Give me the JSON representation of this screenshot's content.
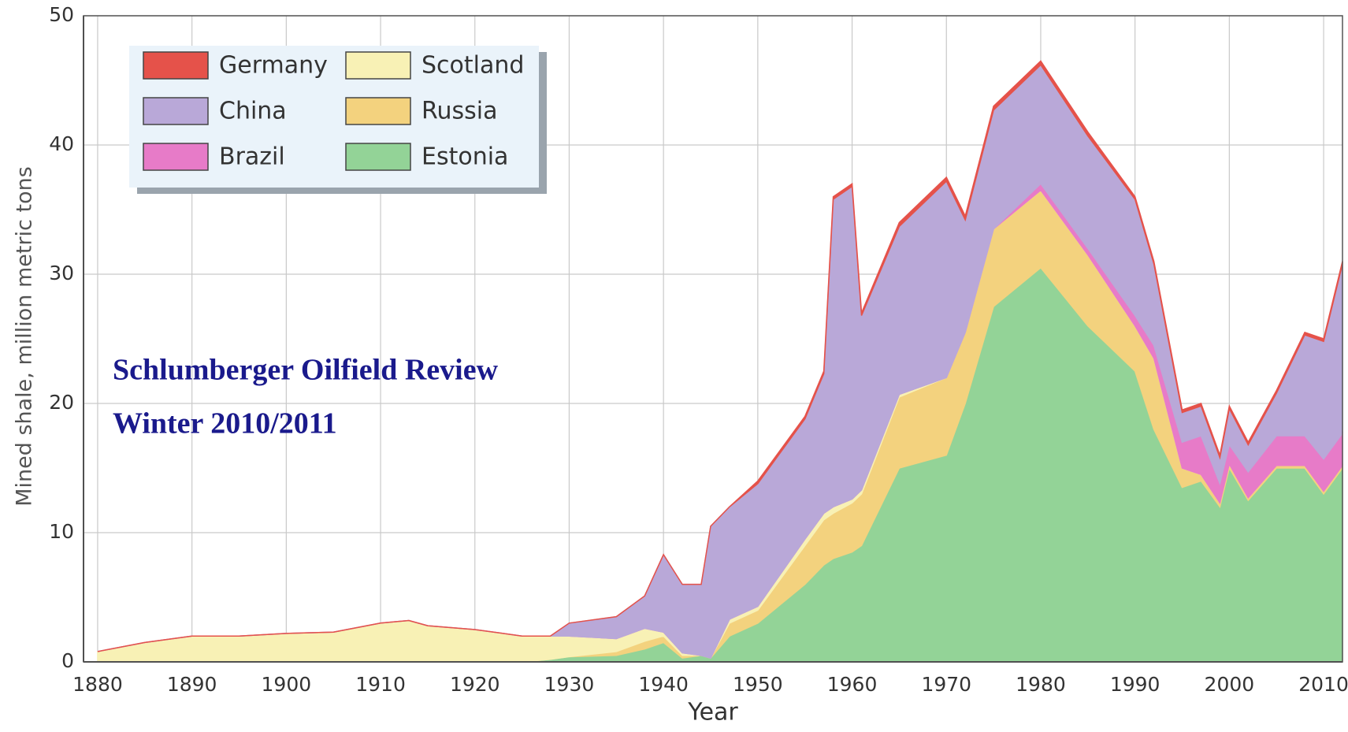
{
  "chart_data": {
    "type": "stacked_area",
    "xlabel": "Year",
    "ylabel": "Mined shale, million metric tons",
    "annotations": [
      "Schlumberger Oilfield Review",
      "Winter 2010/2011"
    ],
    "x": [
      1880,
      1885,
      1890,
      1895,
      1900,
      1905,
      1910,
      1913,
      1915,
      1920,
      1925,
      1928,
      1930,
      1935,
      1938,
      1940,
      1942,
      1944,
      1945,
      1947,
      1950,
      1955,
      1957,
      1958,
      1960,
      1961,
      1965,
      1970,
      1972,
      1975,
      1980,
      1985,
      1990,
      1992,
      1995,
      1997,
      1999,
      2000,
      2002,
      2005,
      2008,
      2010,
      2012
    ],
    "series": [
      {
        "name": "Estonia",
        "color": "#93d397",
        "values": [
          0,
          0,
          0,
          0,
          0,
          0,
          0,
          0,
          0,
          0,
          0,
          0.2,
          0.4,
          0.5,
          1.0,
          1.5,
          0.3,
          0.5,
          0.3,
          2,
          3,
          6,
          7.5,
          8,
          8.5,
          9,
          15,
          16,
          20,
          27.5,
          30.5,
          26,
          22.5,
          18,
          13.5,
          14,
          12,
          15,
          12.5,
          15,
          15,
          13,
          15
        ]
      },
      {
        "name": "Russia",
        "color": "#f3d27e",
        "values": [
          0,
          0,
          0,
          0,
          0,
          0,
          0,
          0,
          0,
          0,
          0,
          0,
          0,
          0.3,
          0.6,
          0.5,
          0.2,
          0,
          0,
          1,
          1,
          3,
          3.5,
          3.5,
          3.8,
          4,
          5.5,
          6,
          5.5,
          6,
          6,
          5.5,
          3.5,
          5.5,
          1.5,
          0.5,
          0.3,
          0.3,
          0.2,
          0.2,
          0.2,
          0.2,
          0.2
        ]
      },
      {
        "name": "Scotland",
        "color": "#f8f1b5",
        "values": [
          0.8,
          1.5,
          2.0,
          2.0,
          2.2,
          2.3,
          3.0,
          3.2,
          2.8,
          2.5,
          2.0,
          1.8,
          1.6,
          1.0,
          1.0,
          0.3,
          0.2,
          0,
          0,
          0.3,
          0.3,
          0.5,
          0.5,
          0.5,
          0.3,
          0.3,
          0.2,
          0,
          0,
          0,
          0,
          0,
          0,
          0,
          0,
          0,
          0,
          0,
          0,
          0,
          0,
          0,
          0
        ]
      },
      {
        "name": "Brazil",
        "color": "#e77bc8",
        "values": [
          0,
          0,
          0,
          0,
          0,
          0,
          0,
          0,
          0,
          0,
          0,
          0,
          0,
          0,
          0,
          0,
          0,
          0,
          0,
          0,
          0,
          0,
          0,
          0,
          0,
          0,
          0,
          0,
          0,
          0,
          0.5,
          0.5,
          0.8,
          1,
          2,
          3,
          1.5,
          1.5,
          2,
          2.3,
          2.3,
          2.5,
          2.5
        ]
      },
      {
        "name": "China",
        "color": "#b9a8d8",
        "values": [
          0,
          0,
          0,
          0,
          0,
          0,
          0,
          0,
          0,
          0,
          0,
          0,
          1.0,
          1.7,
          2.5,
          6,
          5.3,
          5.5,
          10.2,
          8.7,
          9.5,
          9.3,
          10.8,
          23.8,
          24.2,
          13.5,
          13,
          15.2,
          8.7,
          9.2,
          9.2,
          8.7,
          9,
          6.3,
          2.3,
          2.3,
          2,
          2.8,
          2.1,
          3.3,
          7.8,
          9.1,
          13.1
        ]
      },
      {
        "name": "Germany",
        "color": "#e5524a",
        "values": [
          0,
          0,
          0,
          0,
          0,
          0,
          0,
          0,
          0,
          0,
          0,
          0,
          0,
          0,
          0,
          0,
          0,
          0,
          0,
          0,
          0.2,
          0.2,
          0.2,
          0.2,
          0.2,
          0.2,
          0.3,
          0.3,
          0.3,
          0.3,
          0.3,
          0.3,
          0.2,
          0.2,
          0.2,
          0.2,
          0.2,
          0.2,
          0.2,
          0.2,
          0.2,
          0.2,
          0.2
        ]
      }
    ],
    "xlim": [
      1878.5,
      2012
    ],
    "xticks": [
      1880,
      1890,
      1900,
      1910,
      1920,
      1930,
      1940,
      1950,
      1960,
      1970,
      1980,
      1990,
      2000,
      2010
    ],
    "ylim": [
      0,
      50
    ],
    "yticks": [
      0,
      10,
      20,
      30,
      40,
      50
    ],
    "grid": true,
    "legend": "upper left"
  }
}
